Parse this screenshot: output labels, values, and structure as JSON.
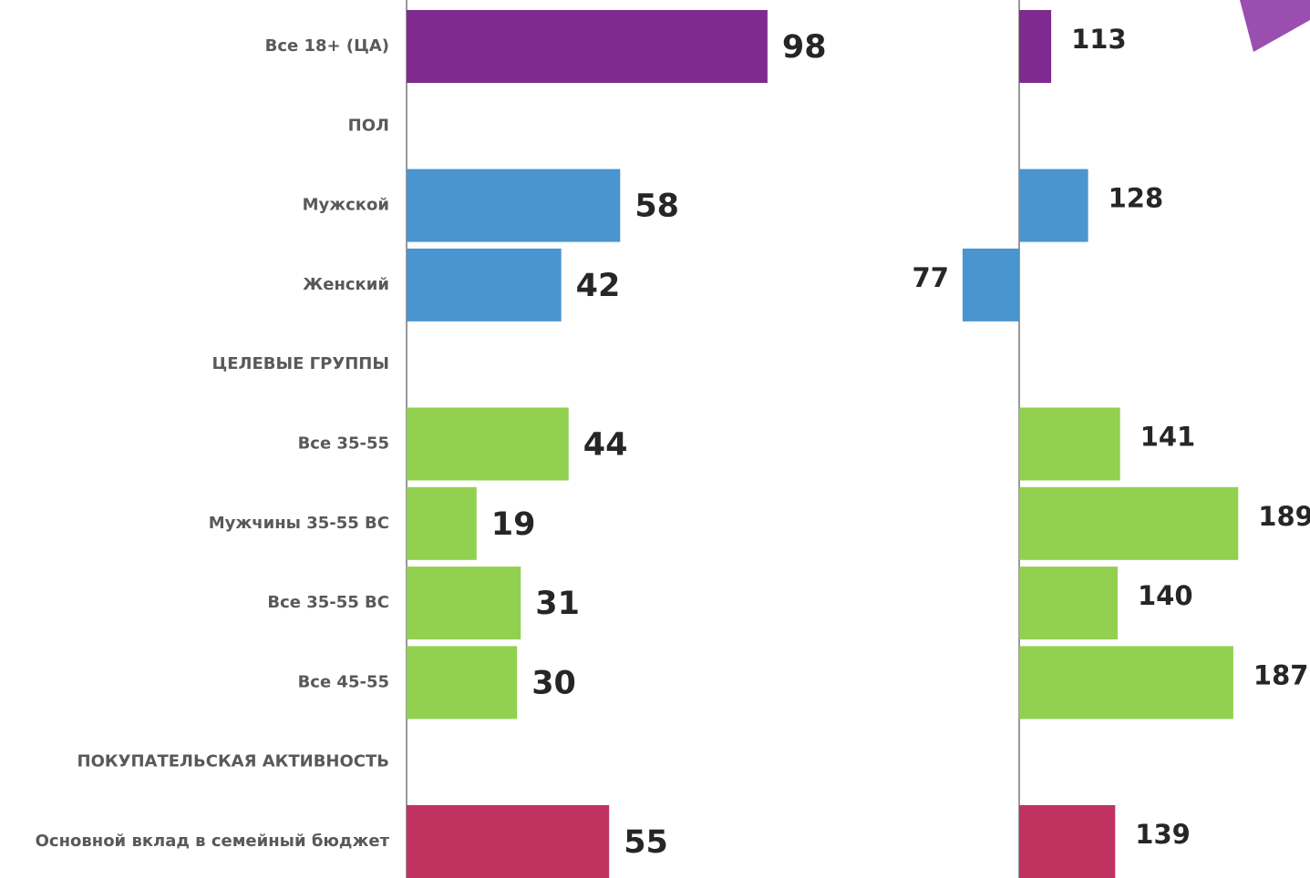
{
  "chart_data": [
    {
      "type": "bar",
      "orientation": "horizontal",
      "categories": [
        "Все 18+ (ЦА)",
        "ПОЛ",
        "Мужской",
        "Женский",
        "ЦЕЛЕВЫЕ ГРУППЫ",
        "Все 35-55",
        "Мужчины 35-55 ВС",
        "Все 35-55 ВС",
        "Все 45-55",
        "ПОКУПАТЕЛЬСКАЯ АКТИВНОСТЬ",
        "Основной вклад в семейный бюджет"
      ],
      "values": [
        98,
        null,
        58,
        42,
        null,
        44,
        19,
        31,
        30,
        null,
        55
      ],
      "colors": [
        "#7f2a8e",
        null,
        "#4a95d0",
        "#4a95d0",
        null,
        "#92d050",
        "#92d050",
        "#92d050",
        "#92d050",
        null,
        "#c03360"
      ],
      "xlim": [
        0,
        100
      ]
    },
    {
      "type": "bar",
      "orientation": "horizontal",
      "values": [
        113,
        null,
        128,
        77,
        null,
        141,
        189,
        140,
        187,
        null,
        139
      ],
      "colors": [
        "#7f2a8e",
        null,
        "#4a95d0",
        "#4a95d0",
        null,
        "#92d050",
        "#92d050",
        "#92d050",
        "#92d050",
        null,
        "#c03360"
      ],
      "xlim": [
        60,
        200
      ],
      "baseline": 100
    }
  ]
}
